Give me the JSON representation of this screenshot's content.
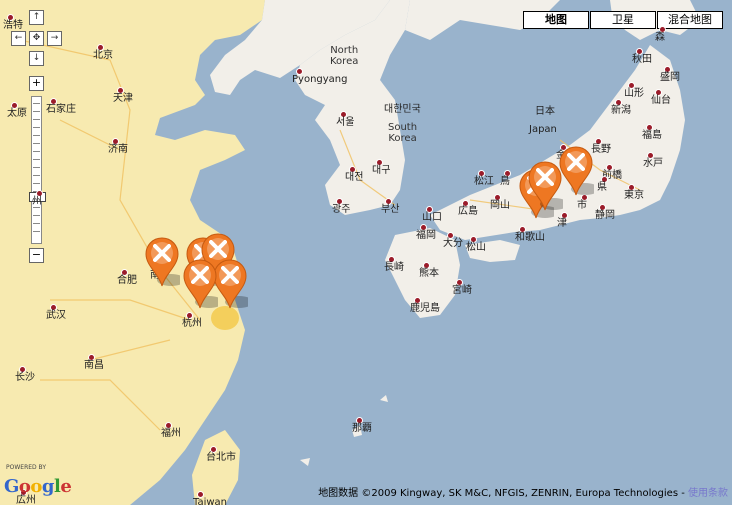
{
  "map_types": {
    "map": "地图",
    "satellite": "卫星",
    "hybrid": "混合地图",
    "active": "map"
  },
  "pan": {
    "up": "↑",
    "down": "↓",
    "left": "←",
    "right": "→",
    "center": "✥"
  },
  "zoom": {
    "in": "+",
    "out": "−",
    "level_fraction": 0.66
  },
  "cities": [
    {
      "id": "beijing",
      "label": "北京"
    },
    {
      "id": "tianjin",
      "label": "天津"
    },
    {
      "id": "shijiazhuang",
      "label": "石家庄"
    },
    {
      "id": "taiyuan",
      "label": "太原"
    },
    {
      "id": "jinan",
      "label": "济南"
    },
    {
      "id": "zhengzhou",
      "label": "州"
    },
    {
      "id": "hefei",
      "label": "合肥"
    },
    {
      "id": "nanjing",
      "label": "南"
    },
    {
      "id": "hangzhou",
      "label": "杭州"
    },
    {
      "id": "wuhan",
      "label": "武汉"
    },
    {
      "id": "nanchang",
      "label": "南昌"
    },
    {
      "id": "changsha",
      "label": "长沙"
    },
    {
      "id": "fuzhou",
      "label": "福州"
    },
    {
      "id": "taipei",
      "label": "台北市"
    },
    {
      "id": "taiwan",
      "label": "Taiwan"
    },
    {
      "id": "qingtai",
      "label": "浩特"
    },
    {
      "id": "pyongyang",
      "label": "Pyongyang"
    },
    {
      "id": "seoul",
      "label": "서울"
    },
    {
      "id": "daejeon",
      "label": "대전"
    },
    {
      "id": "daegu",
      "label": "대구"
    },
    {
      "id": "gwangju",
      "label": "광주"
    },
    {
      "id": "busan",
      "label": "부산"
    },
    {
      "id": "naha",
      "label": "那覇"
    },
    {
      "id": "matsue",
      "label": "松江"
    },
    {
      "id": "tottori",
      "label": "鳥"
    },
    {
      "id": "yamaguchi",
      "label": "山口"
    },
    {
      "id": "hiroshima",
      "label": "広島"
    },
    {
      "id": "okayama",
      "label": "岡山"
    },
    {
      "id": "fukuoka",
      "label": "福岡"
    },
    {
      "id": "oita",
      "label": "大分"
    },
    {
      "id": "matsuyama",
      "label": "松山"
    },
    {
      "id": "nagasaki",
      "label": "長崎"
    },
    {
      "id": "kumamoto",
      "label": "熊本"
    },
    {
      "id": "miyazaki",
      "label": "宮崎"
    },
    {
      "id": "kagoshima",
      "label": "鹿児島"
    },
    {
      "id": "wakayama",
      "label": "和歌山"
    },
    {
      "id": "tsu",
      "label": "津"
    },
    {
      "id": "kanazawa",
      "label": "金沢"
    },
    {
      "id": "nagano",
      "label": "長野"
    },
    {
      "id": "maebashi",
      "label": "前橋"
    },
    {
      "id": "shizuoka",
      "label": "静岡"
    },
    {
      "id": "tokyo",
      "label": "東京"
    },
    {
      "id": "mito",
      "label": "水戸"
    },
    {
      "id": "fukushima",
      "label": "福島"
    },
    {
      "id": "niigata",
      "label": "新潟"
    },
    {
      "id": "sendai",
      "label": "仙台"
    },
    {
      "id": "yamagata",
      "label": "山形"
    },
    {
      "id": "morioka",
      "label": "盛岡"
    },
    {
      "id": "akita",
      "label": "秋田"
    },
    {
      "id": "aomori",
      "label": "森"
    },
    {
      "id": "shi",
      "label": "市"
    },
    {
      "id": "gui",
      "label": "県"
    },
    {
      "id": "guangdong",
      "label": "広州"
    }
  ],
  "countries": [
    {
      "id": "north-korea",
      "label": "North\nKorea"
    },
    {
      "id": "south-korea-ko",
      "label": "대한민국"
    },
    {
      "id": "south-korea",
      "label": "South\nKorea"
    },
    {
      "id": "japan-ja",
      "label": "日本"
    },
    {
      "id": "japan",
      "label": "Japan"
    }
  ],
  "markers_count": 8,
  "attribution": "地图数据 ©2009 Kingway, SK M&C, NFGIS, ZENRIN, Europa Technologies - ",
  "terms_link": "使用条款",
  "powered_by": "POWERED BY",
  "google_letters": [
    "G",
    "o",
    "o",
    "g",
    "l",
    "e"
  ],
  "colors": {
    "sea": "#99b3cc",
    "land": "#f2efe9",
    "china_land": "#f7e9a8",
    "marker": "#ee7722",
    "city_dot": "#9b1c2a"
  }
}
